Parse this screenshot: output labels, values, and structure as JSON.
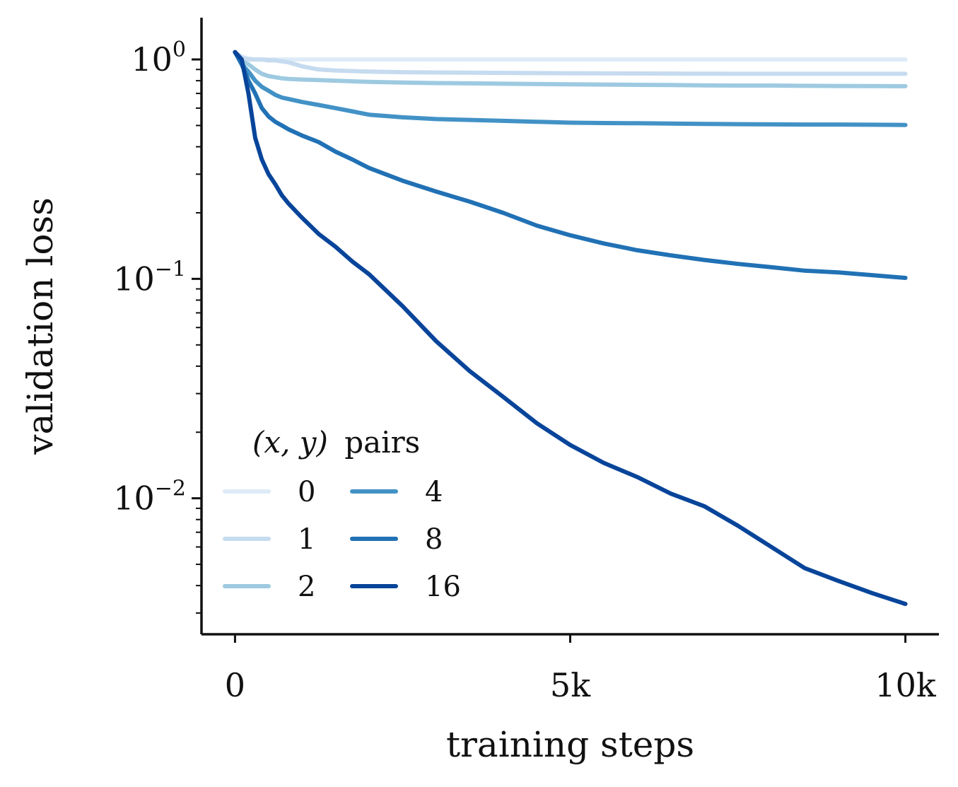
{
  "chart_data": {
    "type": "line",
    "xlabel": "training steps",
    "ylabel": "validation loss",
    "yscale": "log",
    "xlim": [
      -500,
      10500
    ],
    "ylim": [
      0.0024,
      1.55
    ],
    "x_ticks": [
      {
        "value": 0,
        "label": "0"
      },
      {
        "value": 5000,
        "label": "5k"
      },
      {
        "value": 10000,
        "label": "10k"
      }
    ],
    "y_ticks": [
      {
        "value": 1,
        "base": "10",
        "exp": "0"
      },
      {
        "value": 0.1,
        "base": "10",
        "exp": "−1"
      },
      {
        "value": 0.01,
        "base": "10",
        "exp": "−2"
      }
    ],
    "grid": false,
    "legend": {
      "title_math": "(x, y)",
      "title_text": "pairs",
      "placement": "bottom-left",
      "columns": 2
    },
    "x": [
      0,
      100,
      200,
      300,
      400,
      500,
      600,
      700,
      800,
      1000,
      1250,
      1500,
      1750,
      2000,
      2500,
      3000,
      3500,
      4000,
      4500,
      5000,
      5500,
      6000,
      6500,
      7000,
      7500,
      8000,
      8500,
      9000,
      9500,
      10000
    ],
    "series": [
      {
        "name": "0",
        "color": "#deebf7",
        "values": [
          1.08,
          1.03,
          1.01,
          1.0,
          1.0,
          1.0,
          1.0,
          1.0,
          1.0,
          1.0,
          1.0,
          1.0,
          1.0,
          1.0,
          1.0,
          1.0,
          1.0,
          1.0,
          1.0,
          1.0,
          1.0,
          1.0,
          1.0,
          1.0,
          1.0,
          1.0,
          1.0,
          1.0,
          1.0,
          1.0
        ]
      },
      {
        "name": "1",
        "color": "#c6dbef",
        "values": [
          1.08,
          1.02,
          1.0,
          1.0,
          1.0,
          0.99,
          0.99,
          0.98,
          0.97,
          0.93,
          0.9,
          0.89,
          0.885,
          0.88,
          0.875,
          0.872,
          0.87,
          0.868,
          0.866,
          0.865,
          0.864,
          0.863,
          0.862,
          0.861,
          0.86,
          0.86,
          0.86,
          0.86,
          0.86,
          0.86
        ]
      },
      {
        "name": "2",
        "color": "#9ecae1",
        "values": [
          1.08,
          0.98,
          0.95,
          0.9,
          0.86,
          0.84,
          0.83,
          0.82,
          0.815,
          0.81,
          0.805,
          0.8,
          0.795,
          0.79,
          0.785,
          0.78,
          0.778,
          0.775,
          0.772,
          0.77,
          0.768,
          0.766,
          0.764,
          0.762,
          0.76,
          0.76,
          0.758,
          0.757,
          0.756,
          0.755
        ]
      },
      {
        "name": "4",
        "color": "#4292c6",
        "values": [
          1.08,
          0.95,
          0.88,
          0.8,
          0.75,
          0.72,
          0.69,
          0.67,
          0.66,
          0.64,
          0.62,
          0.6,
          0.58,
          0.56,
          0.545,
          0.535,
          0.53,
          0.525,
          0.52,
          0.515,
          0.513,
          0.512,
          0.51,
          0.508,
          0.507,
          0.506,
          0.505,
          0.505,
          0.504,
          0.503
        ]
      },
      {
        "name": "8",
        "color": "#2171b5",
        "values": [
          1.08,
          0.95,
          0.8,
          0.7,
          0.6,
          0.55,
          0.52,
          0.5,
          0.48,
          0.45,
          0.42,
          0.38,
          0.35,
          0.32,
          0.28,
          0.25,
          0.225,
          0.2,
          0.175,
          0.158,
          0.145,
          0.135,
          0.128,
          0.122,
          0.117,
          0.113,
          0.109,
          0.107,
          0.104,
          0.101
        ]
      },
      {
        "name": "16",
        "color": "#08459a",
        "values": [
          1.08,
          1.0,
          0.7,
          0.44,
          0.35,
          0.3,
          0.27,
          0.24,
          0.22,
          0.19,
          0.16,
          0.14,
          0.12,
          0.105,
          0.075,
          0.052,
          0.038,
          0.029,
          0.022,
          0.0175,
          0.0145,
          0.0125,
          0.0105,
          0.0092,
          0.0075,
          0.006,
          0.0048,
          0.0042,
          0.0037,
          0.0033
        ]
      }
    ]
  }
}
